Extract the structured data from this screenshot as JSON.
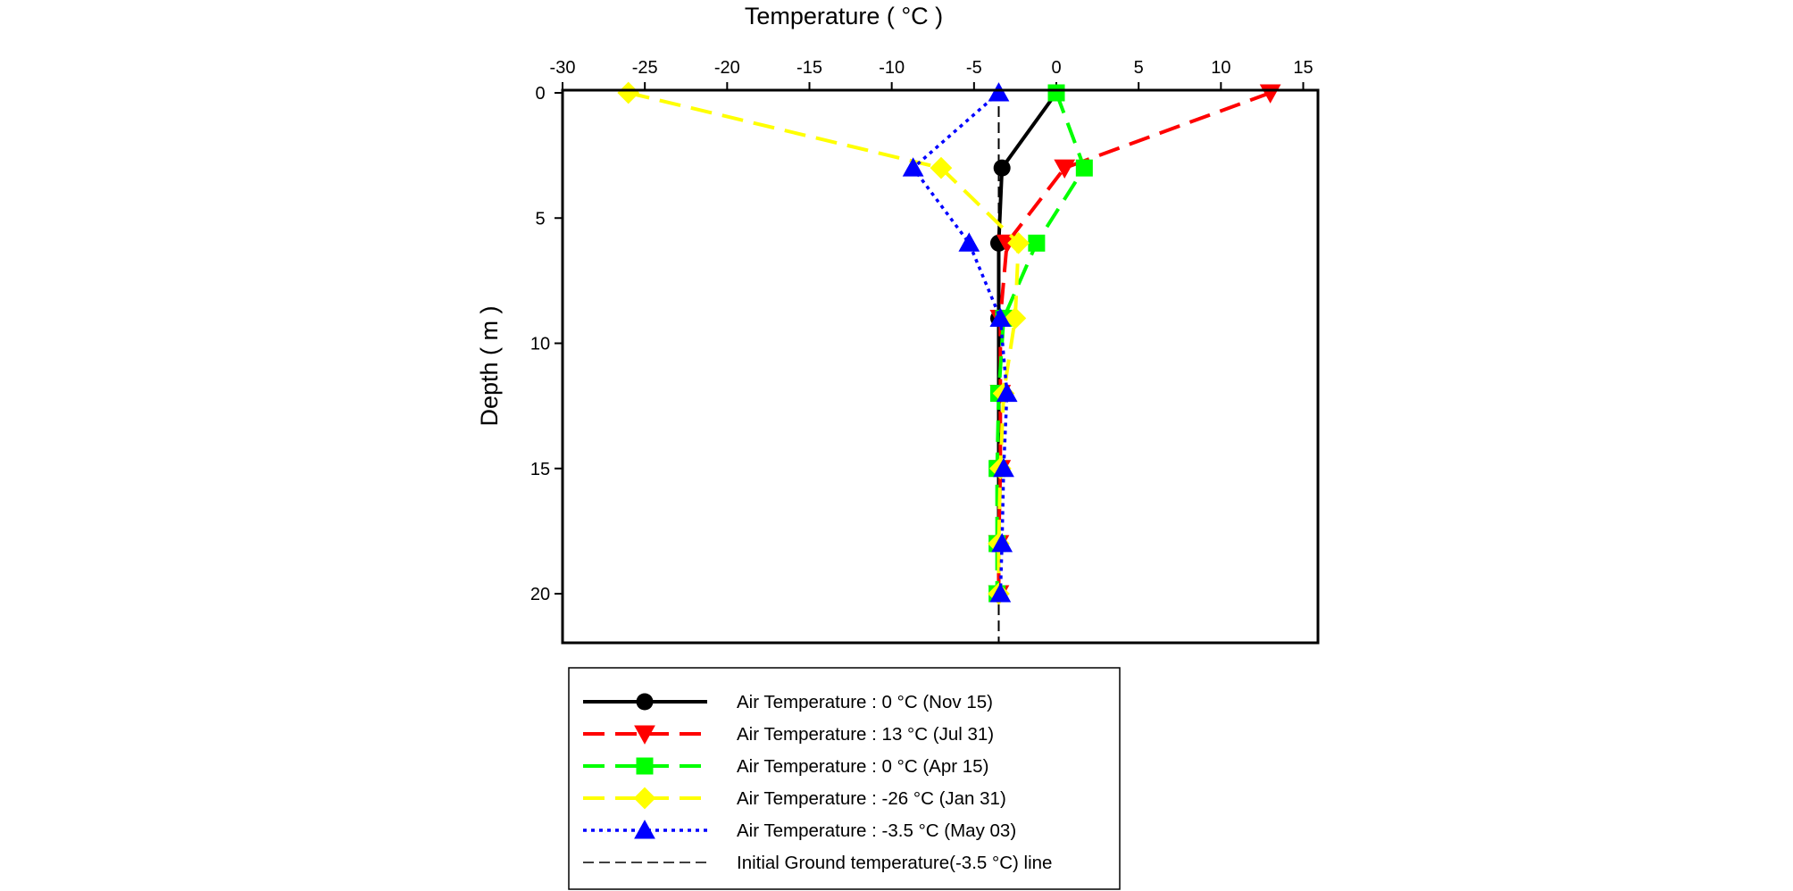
{
  "chart_data": {
    "type": "line",
    "xlabel": "Temperature ( °C )",
    "ylabel": "Depth ( m )",
    "x_axis_position": "top",
    "y_axis_inverted": true,
    "xlim": [
      -30,
      16
    ],
    "ylim": [
      0,
      22
    ],
    "x_ticks": [
      -30,
      -25,
      -20,
      -15,
      -10,
      -5,
      0,
      5,
      10,
      15
    ],
    "y_ticks": [
      0,
      5,
      10,
      15,
      20
    ],
    "grid": false,
    "legend_position": "bottom",
    "series": [
      {
        "name": "Air Temperature : 0 °C (Nov 15)",
        "color": "#000000",
        "marker": "circle",
        "line": "solid",
        "temperature": [
          0,
          -3.3,
          -3.5,
          -3.5,
          -3.5,
          -3.5,
          -3.5,
          -3.5
        ],
        "depth": [
          0,
          3,
          6,
          9,
          12,
          15,
          18,
          20
        ]
      },
      {
        "name": "Air Temperature : 13 °C (Jul 31)",
        "color": "#ff0000",
        "marker": "triangle-down",
        "line": "dashed",
        "temperature": [
          13,
          0.5,
          -3.0,
          -3.4,
          -3.4,
          -3.4,
          -3.5,
          -3.5
        ],
        "depth": [
          0,
          3,
          6,
          9,
          12,
          15,
          18,
          20
        ]
      },
      {
        "name": "Air Temperature : 0 °C (Apr 15)",
        "color": "#00ff00",
        "marker": "square",
        "line": "dashed",
        "temperature": [
          0,
          1.7,
          -1.2,
          -3.2,
          -3.5,
          -3.6,
          -3.6,
          -3.6
        ],
        "depth": [
          0,
          3,
          6,
          9,
          12,
          15,
          18,
          20
        ]
      },
      {
        "name": "Air Temperature : -26 °C (Jan 31)",
        "color": "#ffff00",
        "marker": "diamond",
        "line": "dashed",
        "temperature": [
          -26,
          -7.0,
          -2.3,
          -2.5,
          -3.2,
          -3.4,
          -3.5,
          -3.5
        ],
        "depth": [
          0,
          3,
          6,
          9,
          12,
          15,
          18,
          20
        ]
      },
      {
        "name": "Air Temperature : -3.5 °C (May 03)",
        "color": "#0000ff",
        "marker": "triangle-up",
        "line": "dotted",
        "temperature": [
          -3.5,
          -8.7,
          -5.3,
          -3.4,
          -3.0,
          -3.2,
          -3.3,
          -3.4
        ],
        "depth": [
          0,
          3,
          6,
          9,
          12,
          15,
          18,
          20
        ]
      }
    ],
    "reference_line": {
      "name": "Initial Ground temperature(-3.5 °C) line",
      "color": "#000000",
      "line": "dashed",
      "temperature": -3.5
    }
  }
}
